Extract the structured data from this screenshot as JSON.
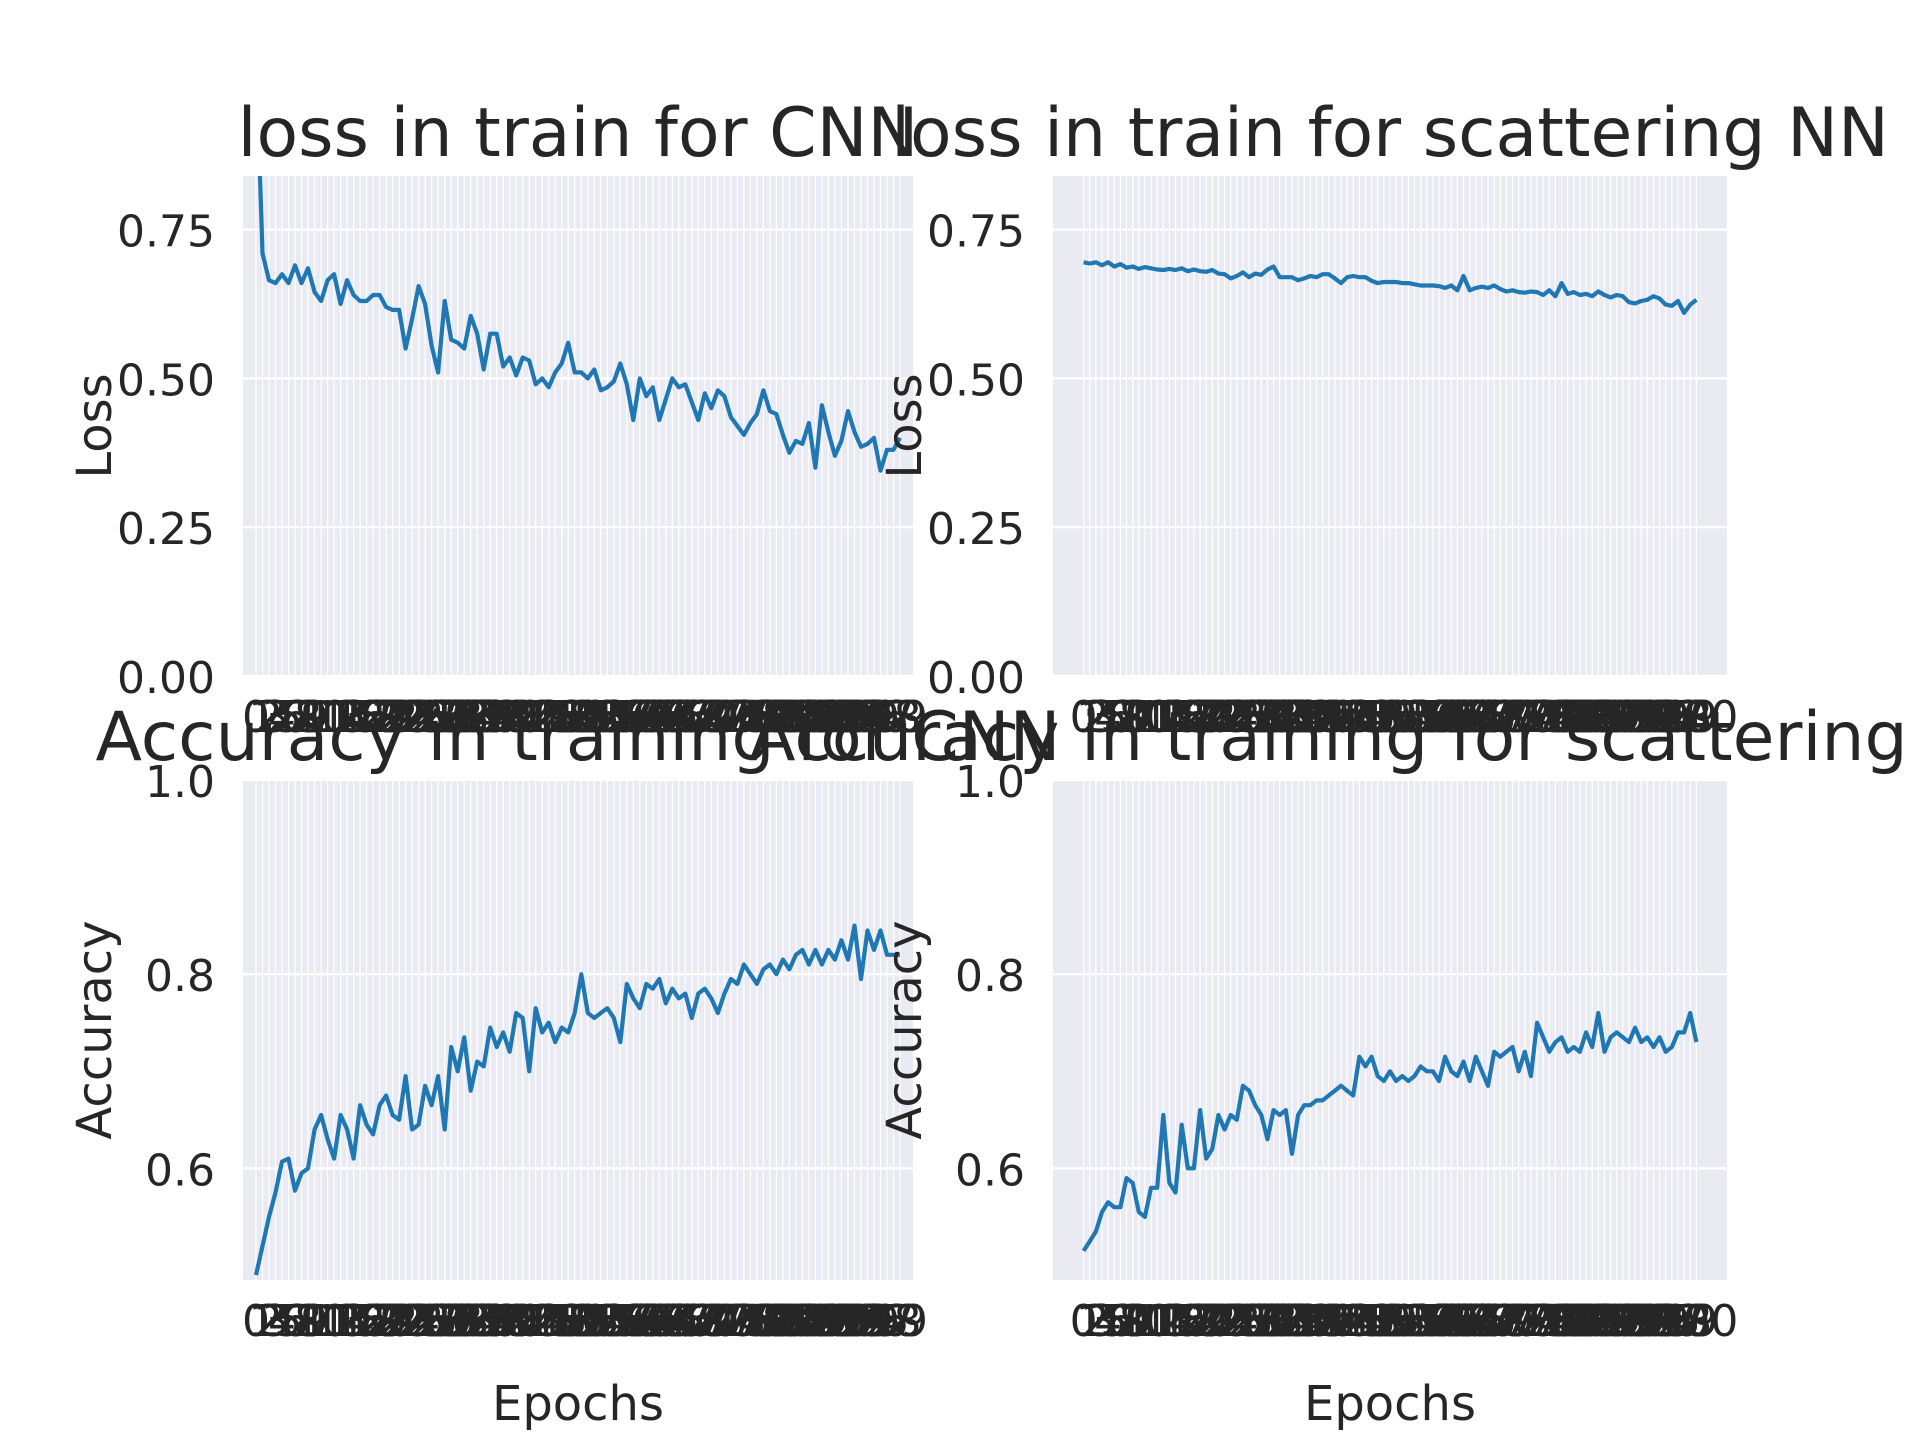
{
  "figure": {
    "background": "#ffffff",
    "axes_facecolor": "#eaeaf2",
    "grid_color": "#ffffff",
    "line_color": "#1f77b4",
    "text_color": "#262626"
  },
  "chart_data": [
    {
      "type": "line",
      "title": "loss in train for CNN",
      "xlabel": "",
      "ylabel": "Loss",
      "xlim": [
        -2,
        101
      ],
      "ylim": [
        0,
        0.84
      ],
      "yticks": [
        "0.00",
        "0.25",
        "0.50",
        "0.75"
      ],
      "ytick_values": [
        0,
        0.25,
        0.5,
        0.75
      ],
      "grid": true,
      "epochs": 100,
      "series": [
        {
          "values": [
            1.05,
            0.71,
            0.665,
            0.66,
            0.675,
            0.66,
            0.69,
            0.66,
            0.685,
            0.645,
            0.63,
            0.665,
            0.675,
            0.625,
            0.665,
            0.64,
            0.63,
            0.63,
            0.64,
            0.64,
            0.62,
            0.615,
            0.615,
            0.55,
            0.6,
            0.655,
            0.625,
            0.555,
            0.51,
            0.63,
            0.565,
            0.56,
            0.55,
            0.605,
            0.575,
            0.515,
            0.575,
            0.575,
            0.52,
            0.535,
            0.505,
            0.535,
            0.53,
            0.49,
            0.5,
            0.485,
            0.51,
            0.525,
            0.56,
            0.51,
            0.51,
            0.5,
            0.515,
            0.48,
            0.485,
            0.495,
            0.525,
            0.49,
            0.43,
            0.5,
            0.47,
            0.485,
            0.43,
            0.465,
            0.5,
            0.485,
            0.49,
            0.46,
            0.43,
            0.475,
            0.45,
            0.48,
            0.47,
            0.435,
            0.42,
            0.405,
            0.425,
            0.44,
            0.48,
            0.445,
            0.44,
            0.405,
            0.375,
            0.395,
            0.39,
            0.425,
            0.35,
            0.455,
            0.41,
            0.37,
            0.395,
            0.445,
            0.41,
            0.385,
            0.39,
            0.4,
            0.345,
            0.38,
            0.38,
            0.4
          ]
        }
      ]
    },
    {
      "type": "line",
      "title": "loss in train for scattering NN",
      "xlabel": "",
      "ylabel": "Loss",
      "xlim": [
        -5,
        105
      ],
      "ylim": [
        0,
        0.84
      ],
      "yticks": [
        "0.00",
        "0.25",
        "0.50",
        "0.75"
      ],
      "ytick_values": [
        0,
        0.25,
        0.5,
        0.75
      ],
      "grid": true,
      "epochs": 101,
      "series": [
        {
          "values": [
            0.695,
            0.693,
            0.695,
            0.69,
            0.695,
            0.688,
            0.692,
            0.686,
            0.688,
            0.684,
            0.687,
            0.685,
            0.683,
            0.682,
            0.684,
            0.682,
            0.685,
            0.68,
            0.683,
            0.68,
            0.679,
            0.682,
            0.676,
            0.675,
            0.668,
            0.672,
            0.678,
            0.67,
            0.676,
            0.674,
            0.683,
            0.688,
            0.67,
            0.67,
            0.67,
            0.665,
            0.668,
            0.672,
            0.67,
            0.675,
            0.675,
            0.668,
            0.66,
            0.67,
            0.672,
            0.67,
            0.67,
            0.664,
            0.66,
            0.662,
            0.662,
            0.662,
            0.66,
            0.66,
            0.658,
            0.656,
            0.656,
            0.656,
            0.655,
            0.652,
            0.656,
            0.648,
            0.672,
            0.648,
            0.652,
            0.654,
            0.652,
            0.656,
            0.65,
            0.646,
            0.648,
            0.645,
            0.644,
            0.646,
            0.645,
            0.64,
            0.648,
            0.638,
            0.66,
            0.642,
            0.645,
            0.64,
            0.642,
            0.638,
            0.646,
            0.64,
            0.636,
            0.64,
            0.638,
            0.628,
            0.626,
            0.63,
            0.632,
            0.638,
            0.634,
            0.624,
            0.622,
            0.63,
            0.61,
            0.624,
            0.632
          ]
        }
      ]
    },
    {
      "type": "line",
      "title": "Accuracy in training for CNN",
      "xlabel": "Epochs",
      "ylabel": "Accuracy",
      "xlim": [
        -2,
        101
      ],
      "ylim": [
        0.485,
        1.0
      ],
      "yticks": [
        "0.6",
        "0.8",
        "1.0"
      ],
      "ytick_values": [
        0.6,
        0.8,
        1.0
      ],
      "grid": true,
      "epochs": 100,
      "series": [
        {
          "values": [
            0.49,
            0.52,
            0.55,
            0.575,
            0.607,
            0.61,
            0.577,
            0.595,
            0.6,
            0.64,
            0.655,
            0.63,
            0.61,
            0.655,
            0.64,
            0.61,
            0.665,
            0.645,
            0.635,
            0.665,
            0.675,
            0.655,
            0.65,
            0.695,
            0.64,
            0.645,
            0.685,
            0.665,
            0.695,
            0.64,
            0.725,
            0.7,
            0.735,
            0.68,
            0.71,
            0.705,
            0.745,
            0.725,
            0.74,
            0.72,
            0.76,
            0.755,
            0.7,
            0.765,
            0.74,
            0.75,
            0.73,
            0.745,
            0.74,
            0.76,
            0.8,
            0.76,
            0.755,
            0.76,
            0.765,
            0.755,
            0.73,
            0.79,
            0.775,
            0.765,
            0.79,
            0.785,
            0.795,
            0.77,
            0.785,
            0.775,
            0.78,
            0.755,
            0.78,
            0.785,
            0.775,
            0.76,
            0.78,
            0.795,
            0.79,
            0.81,
            0.8,
            0.79,
            0.805,
            0.81,
            0.8,
            0.815,
            0.805,
            0.82,
            0.825,
            0.81,
            0.825,
            0.81,
            0.825,
            0.815,
            0.835,
            0.815,
            0.85,
            0.795,
            0.845,
            0.825,
            0.845,
            0.82,
            0.82,
            0.82
          ]
        }
      ]
    },
    {
      "type": "line",
      "title": "Accuracy in training for scattering NN",
      "xlabel": "Epochs",
      "ylabel": "Accuracy",
      "xlim": [
        -5,
        105
      ],
      "ylim": [
        0.485,
        1.0
      ],
      "yticks": [
        "0.6",
        "0.8",
        "1.0"
      ],
      "ytick_values": [
        0.6,
        0.8,
        1.0
      ],
      "grid": true,
      "epochs": 101,
      "series": [
        {
          "values": [
            0.515,
            0.525,
            0.535,
            0.555,
            0.565,
            0.56,
            0.56,
            0.59,
            0.585,
            0.555,
            0.55,
            0.58,
            0.58,
            0.655,
            0.585,
            0.575,
            0.645,
            0.6,
            0.6,
            0.66,
            0.61,
            0.62,
            0.655,
            0.64,
            0.655,
            0.65,
            0.685,
            0.68,
            0.665,
            0.655,
            0.63,
            0.66,
            0.655,
            0.66,
            0.615,
            0.655,
            0.665,
            0.665,
            0.67,
            0.67,
            0.675,
            0.68,
            0.685,
            0.68,
            0.675,
            0.715,
            0.705,
            0.715,
            0.695,
            0.69,
            0.7,
            0.69,
            0.695,
            0.69,
            0.695,
            0.705,
            0.7,
            0.7,
            0.69,
            0.715,
            0.7,
            0.695,
            0.71,
            0.69,
            0.715,
            0.7,
            0.685,
            0.72,
            0.715,
            0.72,
            0.725,
            0.7,
            0.72,
            0.695,
            0.75,
            0.735,
            0.72,
            0.73,
            0.735,
            0.72,
            0.725,
            0.72,
            0.74,
            0.725,
            0.76,
            0.72,
            0.735,
            0.74,
            0.735,
            0.73,
            0.745,
            0.73,
            0.735,
            0.725,
            0.735,
            0.72,
            0.725,
            0.74,
            0.74,
            0.76,
            0.73
          ]
        }
      ]
    }
  ]
}
